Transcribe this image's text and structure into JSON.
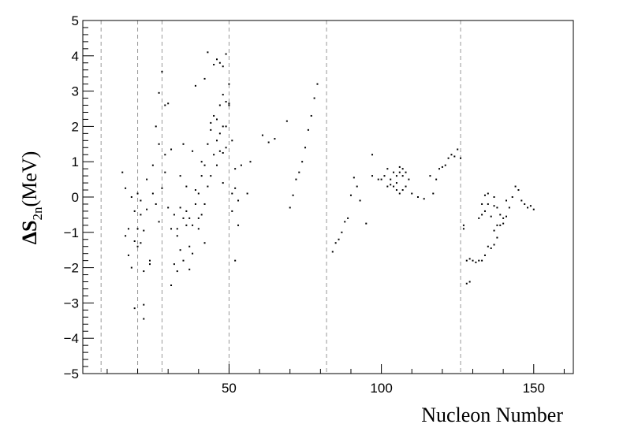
{
  "chart_data": {
    "type": "scatter",
    "title": "",
    "xlabel": "Nucleon Number",
    "ylabel": {
      "symbol": "ΔS",
      "subscript": "2n",
      "unit": "(MeV)"
    },
    "xlim": [
      2,
      163
    ],
    "ylim": [
      -5,
      5
    ],
    "x_ticks": [
      50,
      100,
      150
    ],
    "y_ticks": [
      -5,
      -4,
      -3,
      -2,
      -1,
      0,
      1,
      2,
      3,
      4,
      5
    ],
    "grid": false,
    "legend": "none",
    "reference_lines_x": [
      8,
      20,
      28,
      50,
      82,
      126
    ],
    "series": [
      {
        "marker_color": "#000000",
        "points": [
          [
            15,
            0.7
          ],
          [
            16,
            0.25
          ],
          [
            16,
            -1.1
          ],
          [
            17,
            -0.9
          ],
          [
            17,
            -1.65
          ],
          [
            18,
            -2.0
          ],
          [
            18,
            0.0
          ],
          [
            19,
            -0.4
          ],
          [
            19,
            -1.25
          ],
          [
            19,
            -3.15
          ],
          [
            20,
            -1.4
          ],
          [
            20,
            0.1
          ],
          [
            20,
            -0.9
          ],
          [
            21,
            -0.5
          ],
          [
            21,
            -1.3
          ],
          [
            21,
            -0.1
          ],
          [
            22,
            -0.95
          ],
          [
            22,
            -2.1
          ],
          [
            22,
            -3.05
          ],
          [
            22,
            -3.45
          ],
          [
            23,
            0.5
          ],
          [
            23,
            -0.35
          ],
          [
            24,
            -1.8
          ],
          [
            24,
            -1.9
          ],
          [
            25,
            0.1
          ],
          [
            25,
            0.9
          ],
          [
            26,
            2.0
          ],
          [
            26,
            -0.2
          ],
          [
            27,
            1.5
          ],
          [
            27,
            2.95
          ],
          [
            27,
            -0.7
          ],
          [
            28,
            3.55
          ],
          [
            28,
            0.25
          ],
          [
            29,
            1.2
          ],
          [
            29,
            2.6
          ],
          [
            29,
            0.7
          ],
          [
            30,
            2.65
          ],
          [
            30,
            -0.3
          ],
          [
            31,
            -2.5
          ],
          [
            31,
            -0.9
          ],
          [
            31,
            1.35
          ],
          [
            32,
            -1.9
          ],
          [
            32,
            -0.5
          ],
          [
            33,
            -2.1
          ],
          [
            33,
            -0.9
          ],
          [
            33,
            -1.1
          ],
          [
            34,
            -1.5
          ],
          [
            34,
            0.6
          ],
          [
            34,
            -0.3
          ],
          [
            35,
            1.5
          ],
          [
            35,
            -1.8
          ],
          [
            35,
            -0.6
          ],
          [
            36,
            -0.8
          ],
          [
            36,
            -0.4
          ],
          [
            36,
            0.3
          ],
          [
            37,
            -1.4
          ],
          [
            37,
            -0.6
          ],
          [
            37,
            -2.05
          ],
          [
            38,
            -1.6
          ],
          [
            38,
            -0.8
          ],
          [
            38,
            1.3
          ],
          [
            39,
            -0.2
          ],
          [
            39,
            0.2
          ],
          [
            39,
            3.15
          ],
          [
            40,
            -0.9
          ],
          [
            40,
            0.1
          ],
          [
            40,
            -0.6
          ],
          [
            41,
            0.6
          ],
          [
            41,
            -0.5
          ],
          [
            41,
            1.0
          ],
          [
            42,
            0.9
          ],
          [
            42,
            -1.3
          ],
          [
            42,
            -0.2
          ],
          [
            42,
            3.35
          ],
          [
            43,
            4.1
          ],
          [
            43,
            0.3
          ],
          [
            43,
            1.5
          ],
          [
            44,
            1.9
          ],
          [
            44,
            2.1
          ],
          [
            44,
            0.6
          ],
          [
            45,
            3.75
          ],
          [
            45,
            1.2
          ],
          [
            45,
            2.3
          ],
          [
            46,
            3.9
          ],
          [
            46,
            2.2
          ],
          [
            46,
            0.9
          ],
          [
            46,
            1.6
          ],
          [
            47,
            3.8
          ],
          [
            47,
            2.6
          ],
          [
            47,
            1.8
          ],
          [
            47,
            1.3
          ],
          [
            48,
            3.7
          ],
          [
            48,
            2.9
          ],
          [
            48,
            2.0
          ],
          [
            48,
            1.25
          ],
          [
            48,
            0.4
          ],
          [
            49,
            4.05
          ],
          [
            49,
            2.7
          ],
          [
            49,
            2.0
          ],
          [
            49,
            1.4
          ],
          [
            50,
            3.2
          ],
          [
            50,
            2.6
          ],
          [
            50,
            2.65
          ],
          [
            51,
            -0.4
          ],
          [
            51,
            0.1
          ],
          [
            51,
            1.6
          ],
          [
            52,
            -1.8
          ],
          [
            52,
            0.8
          ],
          [
            52,
            0.25
          ],
          [
            53,
            -0.8
          ],
          [
            53,
            -0.1
          ],
          [
            54,
            0.9
          ],
          [
            56,
            0.1
          ],
          [
            57,
            1.0
          ],
          [
            61,
            1.75
          ],
          [
            63,
            1.55
          ],
          [
            65,
            1.65
          ],
          [
            69,
            2.15
          ],
          [
            70,
            -0.3
          ],
          [
            71,
            0.05
          ],
          [
            72,
            0.5
          ],
          [
            73,
            0.7
          ],
          [
            74,
            1.0
          ],
          [
            75,
            1.4
          ],
          [
            76,
            1.9
          ],
          [
            77,
            2.3
          ],
          [
            78,
            2.8
          ],
          [
            79,
            3.2
          ],
          [
            84,
            -1.55
          ],
          [
            85,
            -1.3
          ],
          [
            86,
            -1.2
          ],
          [
            87,
            -1.0
          ],
          [
            88,
            -0.7
          ],
          [
            89,
            -0.6
          ],
          [
            90,
            0.05
          ],
          [
            91,
            0.55
          ],
          [
            92,
            0.3
          ],
          [
            93,
            -0.1
          ],
          [
            95,
            -0.75
          ],
          [
            97,
            1.2
          ],
          [
            97,
            0.6
          ],
          [
            99,
            0.5
          ],
          [
            100,
            0.5
          ],
          [
            101,
            0.6
          ],
          [
            102,
            0.8
          ],
          [
            102,
            0.3
          ],
          [
            103,
            0.35
          ],
          [
            103,
            0.5
          ],
          [
            104,
            0.7
          ],
          [
            104,
            0.3
          ],
          [
            105,
            0.6
          ],
          [
            105,
            0.4
          ],
          [
            105,
            0.2
          ],
          [
            106,
            0.7
          ],
          [
            106,
            0.85
          ],
          [
            106,
            0.1
          ],
          [
            107,
            0.8
          ],
          [
            107,
            0.6
          ],
          [
            107,
            0.2
          ],
          [
            108,
            0.3
          ],
          [
            108,
            0.7
          ],
          [
            109,
            0.5
          ],
          [
            110,
            0.1
          ],
          [
            112,
            0.0
          ],
          [
            114,
            -0.05
          ],
          [
            116,
            0.6
          ],
          [
            117,
            0.1
          ],
          [
            118,
            0.5
          ],
          [
            119,
            0.8
          ],
          [
            120,
            0.85
          ],
          [
            121,
            0.9
          ],
          [
            122,
            1.1
          ],
          [
            123,
            1.2
          ],
          [
            124,
            1.15
          ],
          [
            125,
            1.35
          ],
          [
            126,
            1.1
          ],
          [
            127,
            -0.8
          ],
          [
            127,
            -0.9
          ],
          [
            128,
            -2.45
          ],
          [
            128,
            -1.8
          ],
          [
            129,
            -2.4
          ],
          [
            129,
            -1.75
          ],
          [
            130,
            -1.8
          ],
          [
            131,
            -1.85
          ],
          [
            132,
            -1.8
          ],
          [
            132,
            -0.6
          ],
          [
            133,
            -1.8
          ],
          [
            133,
            -0.5
          ],
          [
            133,
            -0.2
          ],
          [
            134,
            -1.65
          ],
          [
            134,
            -0.4
          ],
          [
            134,
            0.05
          ],
          [
            135,
            -1.4
          ],
          [
            135,
            -0.2
          ],
          [
            135,
            0.1
          ],
          [
            136,
            -1.45
          ],
          [
            136,
            -0.55
          ],
          [
            137,
            -1.35
          ],
          [
            137,
            -0.95
          ],
          [
            137,
            -0.25
          ],
          [
            137,
            0.0
          ],
          [
            138,
            -1.15
          ],
          [
            138,
            -0.8
          ],
          [
            138,
            -0.3
          ],
          [
            139,
            -0.8
          ],
          [
            139,
            -0.5
          ],
          [
            140,
            -0.75
          ],
          [
            140,
            -0.6
          ],
          [
            141,
            -0.1
          ],
          [
            141,
            -0.55
          ],
          [
            142,
            -0.3
          ],
          [
            143,
            0.0
          ],
          [
            144,
            0.3
          ],
          [
            145,
            0.2
          ],
          [
            146,
            -0.1
          ],
          [
            147,
            -0.2
          ],
          [
            148,
            -0.3
          ],
          [
            149,
            -0.25
          ],
          [
            150,
            -0.35
          ]
        ]
      }
    ]
  }
}
